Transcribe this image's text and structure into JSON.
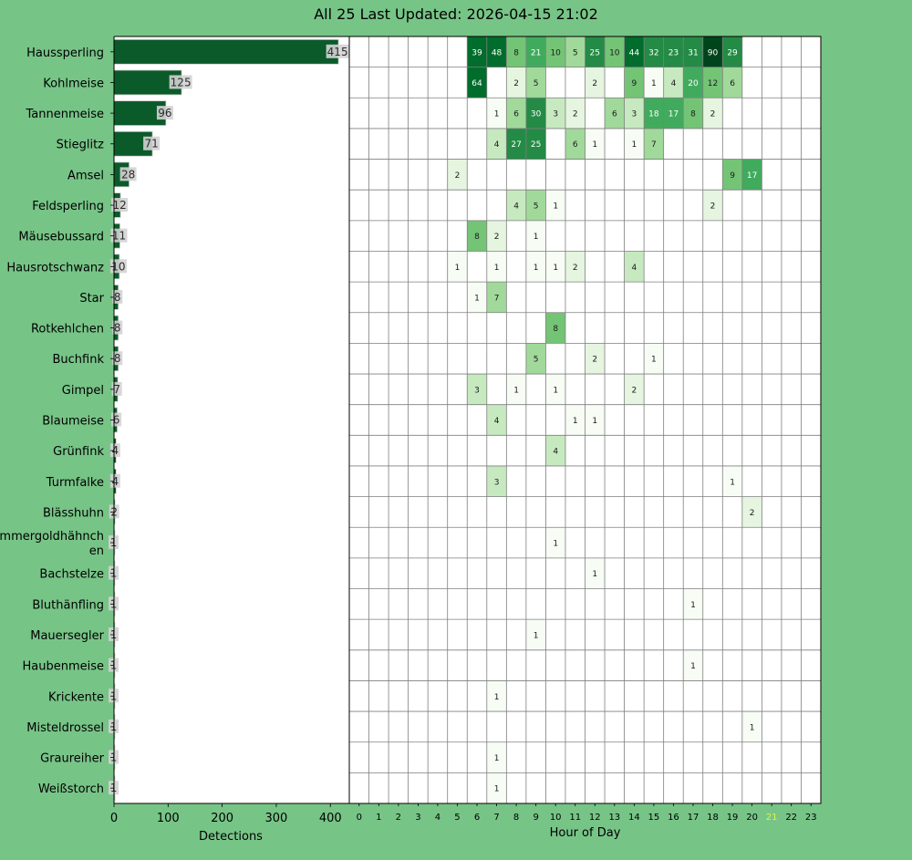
{
  "title": "All 25 Last Updated: 2026-04-15 21:02",
  "colors": {
    "background": "#77c487",
    "bar_fill": "#0b5a2a",
    "bar_value_box": "#d3d3d3",
    "grid_line": "#7f7f7f",
    "current_hour_label": "#e6f23a",
    "heat_scale": [
      "#f7fcf5",
      "#e5f5e0",
      "#c7e9c0",
      "#a1d99b",
      "#74c476",
      "#41ab5d",
      "#238b45",
      "#006d2c",
      "#00441b"
    ]
  },
  "chart_data": [
    {
      "type": "bar",
      "orientation": "horizontal",
      "categories": [
        "Haussperling",
        "Kohlmeise",
        "Tannenmeise",
        "Stieglitz",
        "Amsel",
        "Feldsperling",
        "Mäusebussard",
        "Hausrotschwanz",
        "Star",
        "Rotkehlchen",
        "Buchfink",
        "Gimpel",
        "Blaumeise",
        "Grünfink",
        "Turmfalke",
        "Blässhuhn",
        "Sommergoldhähnchen",
        "Bachstelze",
        "Bluthänfling",
        "Mauersegler",
        "Haubenmeise",
        "Krickente",
        "Misteldrossel",
        "Graureiher",
        "Weißstorch"
      ],
      "category_display": [
        "Haussperling",
        "Kohlmeise",
        "Tannenmeise",
        "Stieglitz",
        "Amsel",
        "Feldsperling",
        "Mäusebussard",
        "Hausrotschwanz",
        "Star",
        "Rotkehlchen",
        "Buchfink",
        "Gimpel",
        "Blaumeise",
        "Grünfink",
        "Turmfalke",
        "Blässhuhn",
        [
          "Sommergoldhähnch",
          "en"
        ],
        "Bachstelze",
        "Bluthänfling",
        "Mauersegler",
        "Haubenmeise",
        "Krickente",
        "Misteldrossel",
        "Graureiher",
        "Weißstorch"
      ],
      "values": [
        415,
        125,
        96,
        71,
        28,
        12,
        11,
        10,
        8,
        8,
        8,
        7,
        6,
        4,
        4,
        2,
        1,
        1,
        1,
        1,
        1,
        1,
        1,
        1,
        1
      ],
      "xlabel": "Detections",
      "ylabel": "",
      "xlim": [
        0,
        435
      ],
      "xticks": [
        0,
        100,
        200,
        300,
        400
      ],
      "data_labels": true,
      "grid": false
    },
    {
      "type": "heatmap",
      "x": [
        0,
        1,
        2,
        3,
        4,
        5,
        6,
        7,
        8,
        9,
        10,
        11,
        12,
        13,
        14,
        15,
        16,
        17,
        18,
        19,
        20,
        21,
        22,
        23
      ],
      "xlabel": "Hour of Day",
      "highlighted_hour": 21,
      "y": [
        "Haussperling",
        "Kohlmeise",
        "Tannenmeise",
        "Stieglitz",
        "Amsel",
        "Feldsperling",
        "Mäusebussard",
        "Hausrotschwanz",
        "Star",
        "Rotkehlchen",
        "Buchfink",
        "Gimpel",
        "Blaumeise",
        "Grünfink",
        "Turmfalke",
        "Blässhuhn",
        "Sommergoldhähnchen",
        "Bachstelze",
        "Bluthänfling",
        "Mauersegler",
        "Haubenmeise",
        "Krickente",
        "Misteldrossel",
        "Graureiher",
        "Weißstorch"
      ],
      "values": [
        [
          null,
          null,
          null,
          null,
          null,
          null,
          39,
          48,
          8,
          21,
          10,
          5,
          25,
          10,
          44,
          32,
          23,
          31,
          90,
          29,
          null,
          null,
          null,
          null
        ],
        [
          null,
          null,
          null,
          null,
          null,
          null,
          64,
          null,
          2,
          5,
          null,
          null,
          2,
          null,
          9,
          1,
          4,
          20,
          12,
          6,
          null,
          null,
          null,
          null
        ],
        [
          null,
          null,
          null,
          null,
          null,
          null,
          null,
          1,
          6,
          30,
          3,
          2,
          null,
          6,
          3,
          18,
          17,
          8,
          2,
          null,
          null,
          null,
          null,
          null
        ],
        [
          null,
          null,
          null,
          null,
          null,
          null,
          null,
          4,
          27,
          25,
          null,
          6,
          1,
          null,
          1,
          7,
          null,
          null,
          null,
          null,
          null,
          null,
          null,
          null
        ],
        [
          null,
          null,
          null,
          null,
          null,
          2,
          null,
          null,
          null,
          null,
          null,
          null,
          null,
          null,
          null,
          null,
          null,
          null,
          null,
          9,
          17,
          null,
          null,
          null
        ],
        [
          null,
          null,
          null,
          null,
          null,
          null,
          null,
          null,
          4,
          5,
          1,
          null,
          null,
          null,
          null,
          null,
          null,
          null,
          2,
          null,
          null,
          null,
          null,
          null
        ],
        [
          null,
          null,
          null,
          null,
          null,
          null,
          8,
          2,
          null,
          1,
          null,
          null,
          null,
          null,
          null,
          null,
          null,
          null,
          null,
          null,
          null,
          null,
          null,
          null
        ],
        [
          null,
          null,
          null,
          null,
          null,
          1,
          null,
          1,
          null,
          1,
          1,
          2,
          null,
          null,
          4,
          null,
          null,
          null,
          null,
          null,
          null,
          null,
          null,
          null
        ],
        [
          null,
          null,
          null,
          null,
          null,
          null,
          1,
          7,
          null,
          null,
          null,
          null,
          null,
          null,
          null,
          null,
          null,
          null,
          null,
          null,
          null,
          null,
          null,
          null
        ],
        [
          null,
          null,
          null,
          null,
          null,
          null,
          null,
          null,
          null,
          null,
          8,
          null,
          null,
          null,
          null,
          null,
          null,
          null,
          null,
          null,
          null,
          null,
          null,
          null
        ],
        [
          null,
          null,
          null,
          null,
          null,
          null,
          null,
          null,
          null,
          5,
          null,
          null,
          2,
          null,
          null,
          1,
          null,
          null,
          null,
          null,
          null,
          null,
          null,
          null
        ],
        [
          null,
          null,
          null,
          null,
          null,
          null,
          3,
          null,
          1,
          null,
          1,
          null,
          null,
          null,
          2,
          null,
          null,
          null,
          null,
          null,
          null,
          null,
          null,
          null
        ],
        [
          null,
          null,
          null,
          null,
          null,
          null,
          null,
          4,
          null,
          null,
          null,
          1,
          1,
          null,
          null,
          null,
          null,
          null,
          null,
          null,
          null,
          null,
          null,
          null
        ],
        [
          null,
          null,
          null,
          null,
          null,
          null,
          null,
          null,
          null,
          null,
          4,
          null,
          null,
          null,
          null,
          null,
          null,
          null,
          null,
          null,
          null,
          null,
          null,
          null
        ],
        [
          null,
          null,
          null,
          null,
          null,
          null,
          null,
          3,
          null,
          null,
          null,
          null,
          null,
          null,
          null,
          null,
          null,
          null,
          null,
          1,
          null,
          null,
          null,
          null
        ],
        [
          null,
          null,
          null,
          null,
          null,
          null,
          null,
          null,
          null,
          null,
          null,
          null,
          null,
          null,
          null,
          null,
          null,
          null,
          null,
          null,
          2,
          null,
          null,
          null
        ],
        [
          null,
          null,
          null,
          null,
          null,
          null,
          null,
          null,
          null,
          null,
          1,
          null,
          null,
          null,
          null,
          null,
          null,
          null,
          null,
          null,
          null,
          null,
          null,
          null
        ],
        [
          null,
          null,
          null,
          null,
          null,
          null,
          null,
          null,
          null,
          null,
          null,
          null,
          1,
          null,
          null,
          null,
          null,
          null,
          null,
          null,
          null,
          null,
          null,
          null
        ],
        [
          null,
          null,
          null,
          null,
          null,
          null,
          null,
          null,
          null,
          null,
          null,
          null,
          null,
          null,
          null,
          null,
          null,
          1,
          null,
          null,
          null,
          null,
          null,
          null
        ],
        [
          null,
          null,
          null,
          null,
          null,
          null,
          null,
          null,
          null,
          1,
          null,
          null,
          null,
          null,
          null,
          null,
          null,
          null,
          null,
          null,
          null,
          null,
          null,
          null
        ],
        [
          null,
          null,
          null,
          null,
          null,
          null,
          null,
          null,
          null,
          null,
          null,
          null,
          null,
          null,
          null,
          null,
          null,
          1,
          null,
          null,
          null,
          null,
          null,
          null
        ],
        [
          null,
          null,
          null,
          null,
          null,
          null,
          null,
          1,
          null,
          null,
          null,
          null,
          null,
          null,
          null,
          null,
          null,
          null,
          null,
          null,
          null,
          null,
          null,
          null
        ],
        [
          null,
          null,
          null,
          null,
          null,
          null,
          null,
          null,
          null,
          null,
          null,
          null,
          null,
          null,
          null,
          null,
          null,
          null,
          null,
          null,
          1,
          null,
          null,
          null
        ],
        [
          null,
          null,
          null,
          null,
          null,
          null,
          null,
          1,
          null,
          null,
          null,
          null,
          null,
          null,
          null,
          null,
          null,
          null,
          null,
          null,
          null,
          null,
          null,
          null
        ],
        [
          null,
          null,
          null,
          null,
          null,
          null,
          null,
          1,
          null,
          null,
          null,
          null,
          null,
          null,
          null,
          null,
          null,
          null,
          null,
          null,
          null,
          null,
          null,
          null
        ]
      ],
      "cell_labels": true,
      "grid": true
    }
  ]
}
